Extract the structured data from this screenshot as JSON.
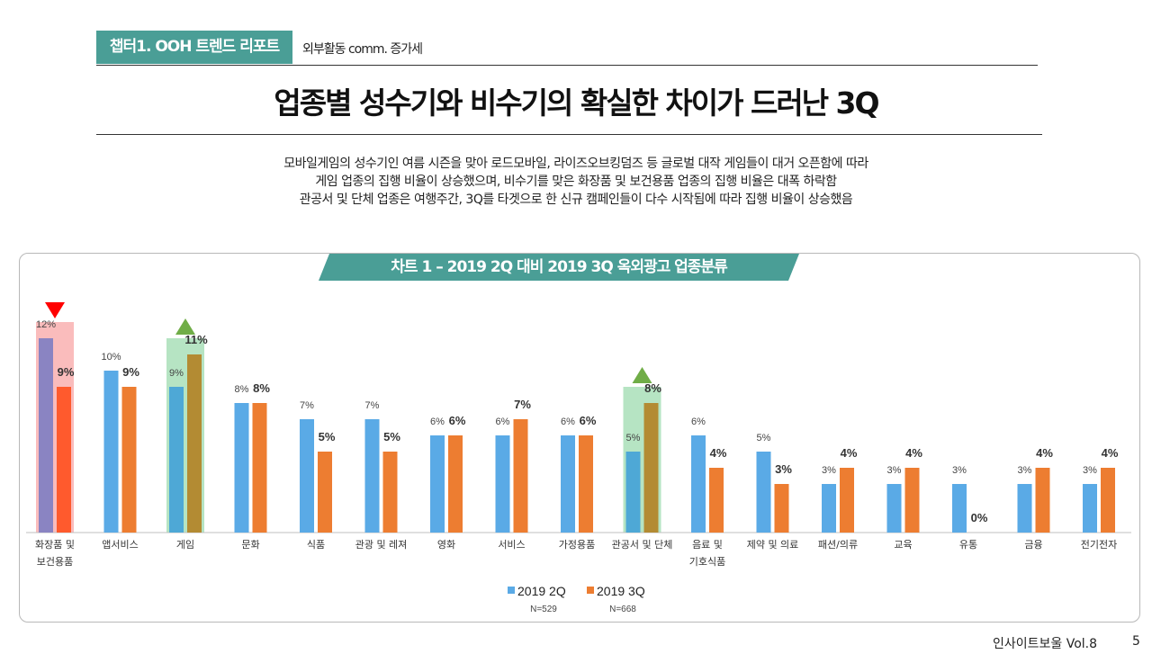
{
  "header": {
    "chapter_tag": "챕터1. OOH 트렌드 리포트",
    "sub_tag": "외부활동 comm. 증가세",
    "title": "업종별 성수기와 비수기의 확실한 차이가 드러난 3Q",
    "description": [
      "모바일게임의 성수기인 여름 시즌을 맞아 로드모바일, 라이즈오브킹덤즈 등 글로벌 대작 게임들이 대거 오픈함에 따라",
      "게임 업종의 집행 비율이 상승했으며, 비수기를 맞은 화장품 및 보건용품 업종의 집행 비율은 대폭 하락함",
      "관공서 및 단체 업종은 여행주간, 3Q를 타겟으로 한 신규 캠페인들이 다수 시작됨에 따라 집행 비율이 상승했음"
    ]
  },
  "chart_title": "차트 1 – 2019 2Q 대비 2019 3Q 옥외광고 업종분류",
  "chart_data": {
    "type": "bar",
    "categories": [
      "화장품 및\n보건용품",
      "앱서비스",
      "게임",
      "문화",
      "식품",
      "관광 및 레져",
      "영화",
      "서비스",
      "가정용품",
      "관공서 및 단체",
      "음료 및\n기호식품",
      "제약 및 의료",
      "패션/의류",
      "교육",
      "유통",
      "금융",
      "전기전자"
    ],
    "series": [
      {
        "name": "2019 2Q",
        "values": [
          12,
          10,
          9,
          8,
          7,
          7,
          6,
          6,
          6,
          5,
          6,
          5,
          3,
          3,
          3,
          3,
          3
        ],
        "labels": [
          "12%",
          "10%",
          "9%",
          "8%",
          "7%",
          "7%",
          "6%",
          "6%",
          "6%",
          "5%",
          "6%",
          "5%",
          "3%",
          "3%",
          "3%",
          "3%",
          "3%"
        ]
      },
      {
        "name": "2019 3Q",
        "values": [
          9,
          9,
          11,
          8,
          5,
          5,
          6,
          7,
          6,
          8,
          4,
          3,
          4,
          4,
          0,
          4,
          4
        ],
        "labels": [
          "9%",
          "9%",
          "11%",
          "8%",
          "5%",
          "5%",
          "6%",
          "7%",
          "6%",
          "8%",
          "4%",
          "3%",
          "4%",
          "4%",
          "0%",
          "4%",
          "4%"
        ]
      }
    ],
    "ylim": [
      0,
      12
    ],
    "grid": false,
    "legend": "bottom",
    "legend_notes": [
      "N=529",
      "N=668"
    ],
    "highlights": [
      {
        "category": "화장품 및\n보건용품",
        "direction": "down"
      },
      {
        "category": "게임",
        "direction": "up"
      },
      {
        "category": "관공서 및 단체",
        "direction": "up"
      }
    ],
    "colors": {
      "q2": "#5aaae6",
      "q3": "#ed7d31",
      "down": "#ff0000",
      "up": "#70ad47",
      "down_box": "#f9b0b0",
      "up_box": "#a9dfb9"
    }
  },
  "footer": {
    "publication": "인사이트보울 Vol.8",
    "page_number": "5"
  }
}
